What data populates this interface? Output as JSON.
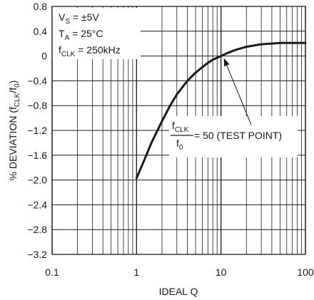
{
  "chart_data": {
    "type": "line",
    "x_scale": "log",
    "xlabel": "IDEAL Q",
    "ylabel_main": "% DEVIATION (f",
    "ylabel_sub1": "CLK",
    "ylabel_mid": "/f",
    "ylabel_sub2": "0",
    "ylabel_end": ")",
    "xlim": [
      0.1,
      100
    ],
    "ylim": [
      -3.2,
      0.8
    ],
    "x_ticks": [
      {
        "value": 0.1,
        "label": "0.1"
      },
      {
        "value": 1,
        "label": "1"
      },
      {
        "value": 10,
        "label": "10"
      },
      {
        "value": 100,
        "label": "100"
      }
    ],
    "y_ticks": [
      {
        "value": 0.8,
        "label": "0.8"
      },
      {
        "value": 0.4,
        "label": "0.4"
      },
      {
        "value": 0,
        "label": "0"
      },
      {
        "value": -0.4,
        "label": "−0.4"
      },
      {
        "value": -0.8,
        "label": "−0.8"
      },
      {
        "value": -1.2,
        "label": "−1.2"
      },
      {
        "value": -1.6,
        "label": "−1.6"
      },
      {
        "value": -2.0,
        "label": "−2.0"
      },
      {
        "value": -2.4,
        "label": "−2.4"
      },
      {
        "value": -2.8,
        "label": "−2.8"
      },
      {
        "value": -3.2,
        "label": "−3.2"
      }
    ],
    "grid": true,
    "series": [
      {
        "x": [
          1.0,
          1.2,
          1.5,
          2,
          2.5,
          3,
          4,
          5,
          6,
          7,
          8,
          10,
          12,
          15,
          20,
          30,
          50,
          70,
          100
        ],
        "y": [
          -1.97,
          -1.72,
          -1.4,
          -1.05,
          -0.8,
          -0.62,
          -0.4,
          -0.27,
          -0.18,
          -0.11,
          -0.06,
          0.0,
          0.05,
          0.1,
          0.15,
          0.19,
          0.21,
          0.21,
          0.21
        ]
      }
    ],
    "conditions": [
      {
        "main": "V",
        "sub": "S",
        "rest": " = ±5V"
      },
      {
        "main": "T",
        "sub": "A",
        "rest": " = 25°C"
      },
      {
        "main": "f",
        "sub": "CLK",
        "rest": " = 250kHz"
      }
    ],
    "annotation": {
      "num_main": "f",
      "num_sub": "CLK",
      "den_main": "f",
      "den_sub": "0",
      "rest": " = 50 (TEST POINT)",
      "target": {
        "x": 10,
        "y": 0.0
      }
    }
  }
}
